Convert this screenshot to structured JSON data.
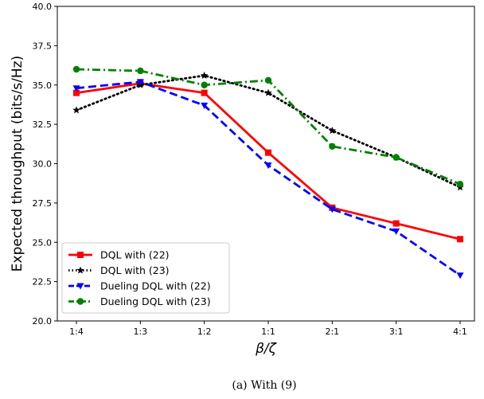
{
  "chart_data": {
    "type": "line",
    "categories": [
      "1:4",
      "1:3",
      "1:2",
      "1:1",
      "2:1",
      "3:1",
      "4:1"
    ],
    "xlabel": "β/ζ",
    "ylabel": "Expected throughput (bits/s/Hz)",
    "ylim": [
      20.0,
      40.0
    ],
    "yticks": [
      "20.0",
      "22.5",
      "25.0",
      "27.5",
      "30.0",
      "32.5",
      "35.0",
      "37.5",
      "40.0"
    ],
    "legend_position": "lower-left",
    "grid": false,
    "series": [
      {
        "name": "DQL with (22)",
        "color": "#ff0000",
        "line_style": "solid",
        "marker": "square",
        "values": [
          34.5,
          35.1,
          34.5,
          30.7,
          27.2,
          26.2,
          25.2
        ]
      },
      {
        "name": "DQL with (23)",
        "color": "#000000",
        "line_style": "dotted",
        "marker": "star",
        "values": [
          33.4,
          35.0,
          35.6,
          34.5,
          32.1,
          30.4,
          28.5
        ]
      },
      {
        "name": "Dueling DQL with (22)",
        "color": "#0000ff",
        "line_style": "dashed",
        "marker": "triangle-down",
        "values": [
          34.8,
          35.2,
          33.7,
          29.9,
          27.1,
          25.7,
          22.9
        ]
      },
      {
        "name": "Dueling DQL with (23)",
        "color": "#008000",
        "line_style": "dashdot",
        "marker": "circle",
        "values": [
          36.0,
          35.9,
          35.0,
          35.3,
          31.1,
          30.4,
          28.7
        ]
      }
    ]
  },
  "caption": "(a)  With (9)"
}
